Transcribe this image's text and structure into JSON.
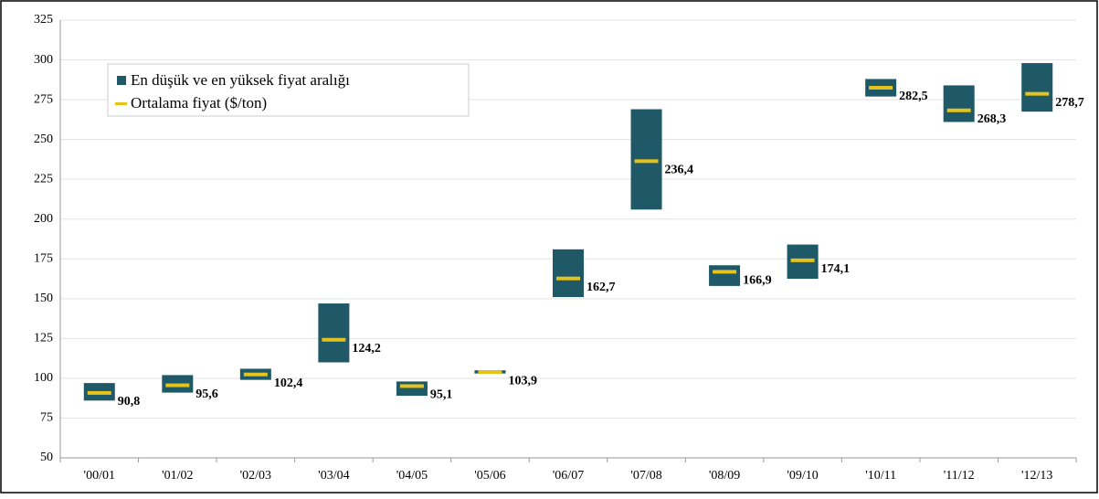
{
  "chart_data": {
    "type": "range_bar",
    "categories": [
      "'00/01",
      "'01/02",
      "'02/03",
      "'03/04",
      "'04/05",
      "'05/06",
      "'06/07",
      "'07/08",
      "'08/09",
      "'09/10",
      "'10/11",
      "'11/12",
      "'12/13"
    ],
    "series": [
      {
        "name": "En düşük ve en yüksek fiyat aralığı",
        "color": "#1f5866",
        "low": [
          86,
          91,
          99,
          110,
          89,
          103,
          151,
          206,
          158,
          162.5,
          277,
          261,
          267.5
        ],
        "high": [
          97,
          102,
          106,
          147,
          98,
          105,
          181,
          269,
          171,
          184,
          288,
          284,
          298
        ]
      },
      {
        "name": "Ortalama fiyat ($/ton)",
        "color": "#e6c31c",
        "values": [
          90.8,
          95.6,
          102.4,
          124.2,
          95.1,
          103.9,
          162.7,
          236.4,
          166.9,
          174.1,
          282.5,
          268.3,
          278.7
        ],
        "value_labels": [
          "90,8",
          "95,6",
          "102,4",
          "124,2",
          "95,1",
          "103,9",
          "162,7",
          "236,4",
          "166,9",
          "174,1",
          "282,5",
          "268,3",
          "278,7"
        ]
      }
    ],
    "ylim": [
      50,
      325
    ],
    "yticks": [
      50,
      75,
      100,
      125,
      150,
      175,
      200,
      225,
      250,
      275,
      300,
      325
    ],
    "grid": true,
    "legend": "top-left"
  }
}
